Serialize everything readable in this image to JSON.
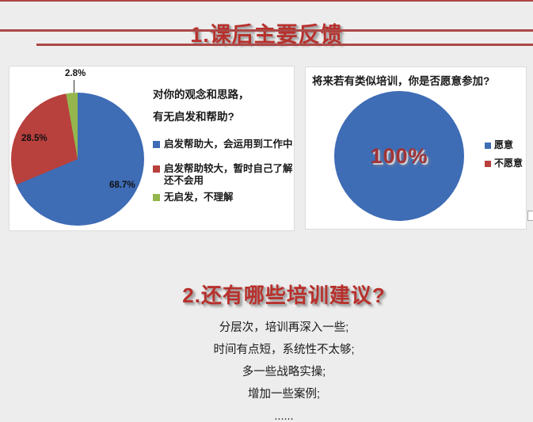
{
  "sections": {
    "s1": {
      "title": "1.课后主要反馈"
    },
    "s2": {
      "title": "2.还有哪些培训建议?"
    }
  },
  "suggestions": [
    "分层次，培训再深入一些;",
    "时间有点短，系统性不太够;",
    "多一些战略实操;",
    "增加一些案例;",
    "......"
  ],
  "colors": {
    "background": "#EDEDED",
    "panel_bg": "#FFFFFF",
    "accent_line": "#AC4846",
    "title_red": "#B8302C",
    "pie_blue": "#3E6CB5",
    "pie_red": "#B8403D",
    "pie_green": "#94B64D",
    "center_label_red": "#A23335",
    "text_black": "#1A1A1A"
  },
  "chart_data": [
    {
      "type": "pie",
      "title": "对你的观念和思路，有无启发和帮助?",
      "title_lines": [
        "对你的观念和思路，",
        "有无启发和帮助?"
      ],
      "labels": [
        "启发帮助大，会运用到工作中",
        "启发帮助较大，暂时自己了解还不会用",
        "无启发，不理解"
      ],
      "values": [
        68.7,
        28.5,
        2.8
      ],
      "value_labels": [
        "68.7%",
        "28.5%",
        "2.8%"
      ],
      "colors": [
        "#3E6CB5",
        "#B8403D",
        "#94B64D"
      ],
      "start_angle_deg": 0,
      "direction": "clockwise",
      "legend_position": "right"
    },
    {
      "type": "pie",
      "title": "将来若有类似培训，你是否愿意参加?",
      "labels": [
        "愿意",
        "不愿意"
      ],
      "values": [
        100,
        0
      ],
      "value_labels": [
        "100%"
      ],
      "center_label": "100%",
      "colors": [
        "#3E6CB5",
        "#B8403D"
      ],
      "legend_position": "right"
    }
  ]
}
